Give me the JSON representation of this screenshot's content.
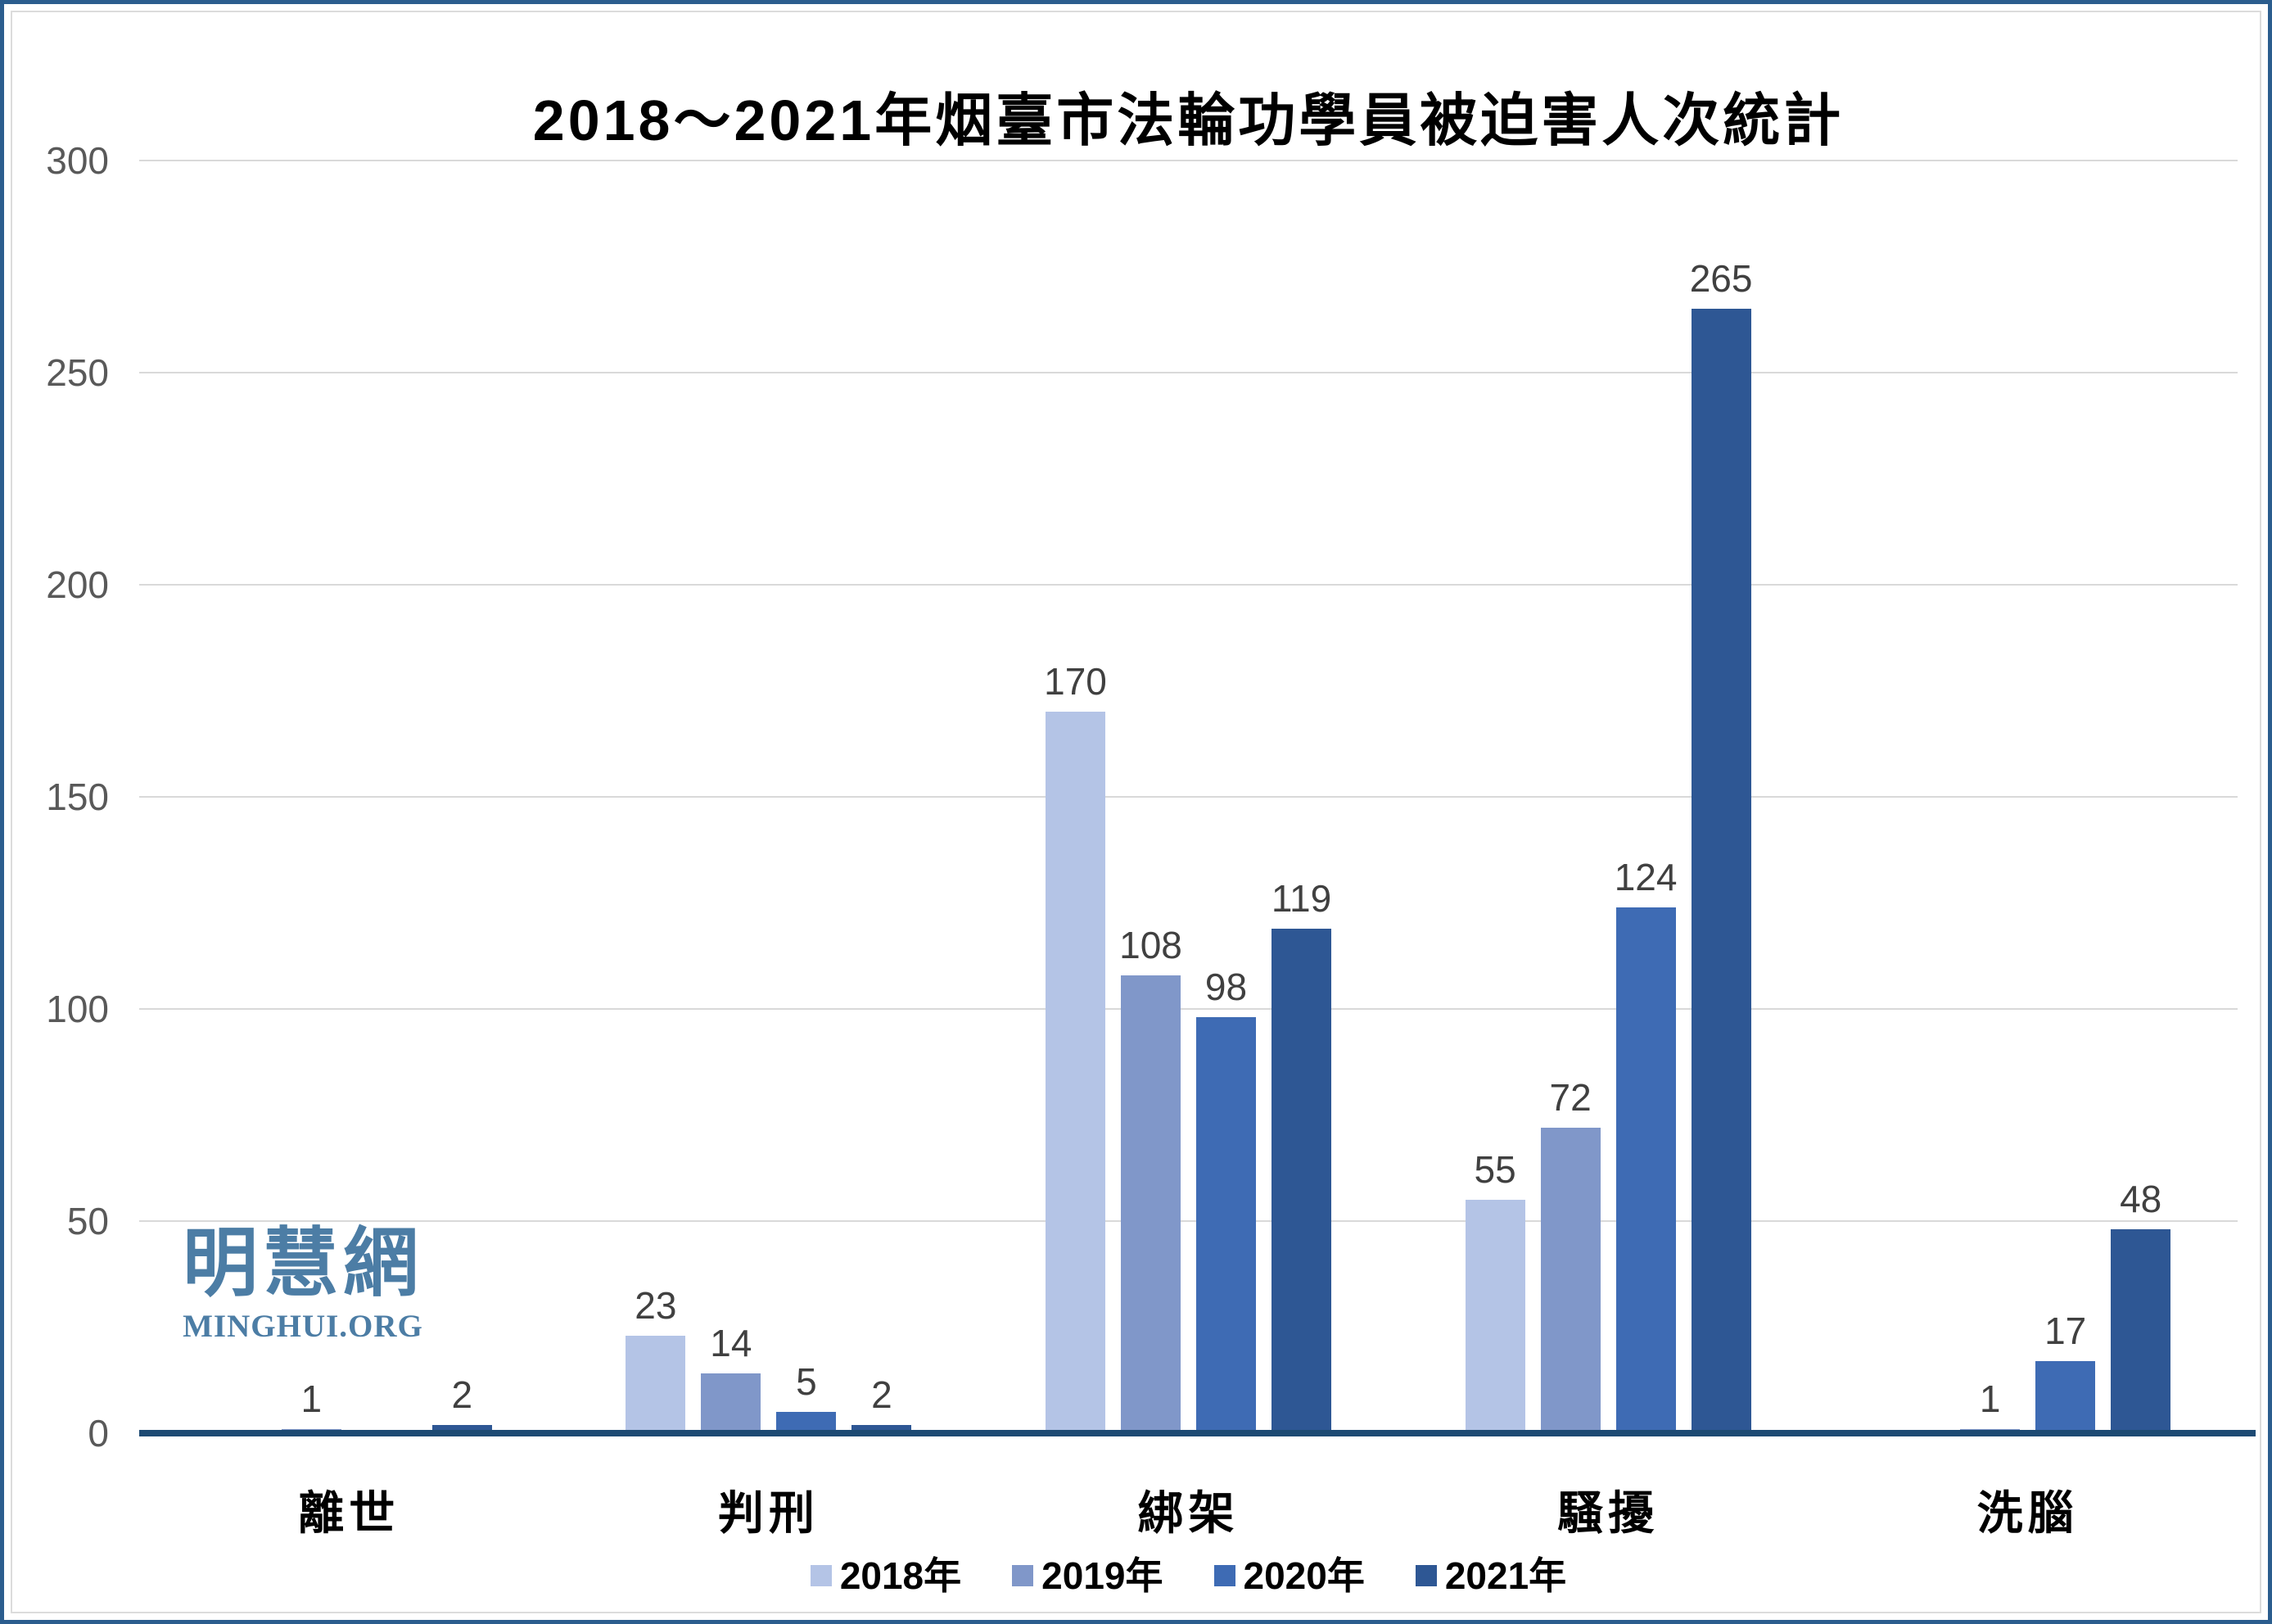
{
  "page": {
    "border_color": "#2B5D8E",
    "inner_frame_color": "#DCDCDC",
    "background": "#FFFFFF"
  },
  "chart_data": {
    "type": "bar",
    "title": "2018～2021年烟臺市法輪功學員被迫害人次統計",
    "categories": [
      "離世",
      "判刑",
      "綁架",
      "騷擾",
      "洗腦"
    ],
    "series": [
      {
        "name": "2018年",
        "color": "#B4C4E6",
        "values": [
          0,
          23,
          170,
          55,
          0
        ]
      },
      {
        "name": "2019年",
        "color": "#8097C9",
        "values": [
          1,
          14,
          108,
          72,
          1
        ]
      },
      {
        "name": "2020年",
        "color": "#3E6BB4",
        "values": [
          0,
          5,
          98,
          124,
          17
        ]
      },
      {
        "name": "2021年",
        "color": "#2E5794",
        "values": [
          2,
          2,
          119,
          265,
          48
        ]
      }
    ],
    "ylim": [
      0,
      300
    ],
    "yticks": [
      0,
      50,
      100,
      150,
      200,
      250,
      300
    ],
    "grid": true,
    "gridline_color": "#D9D9D9",
    "axis_line_color": "#1D4A73",
    "tick_label_color": "#595959",
    "data_label_color": "#404040",
    "legend_position": "bottom",
    "hide_zero_labels": true
  },
  "watermark": {
    "cjk": "明慧網",
    "latin": "MINGHUI.ORG"
  }
}
